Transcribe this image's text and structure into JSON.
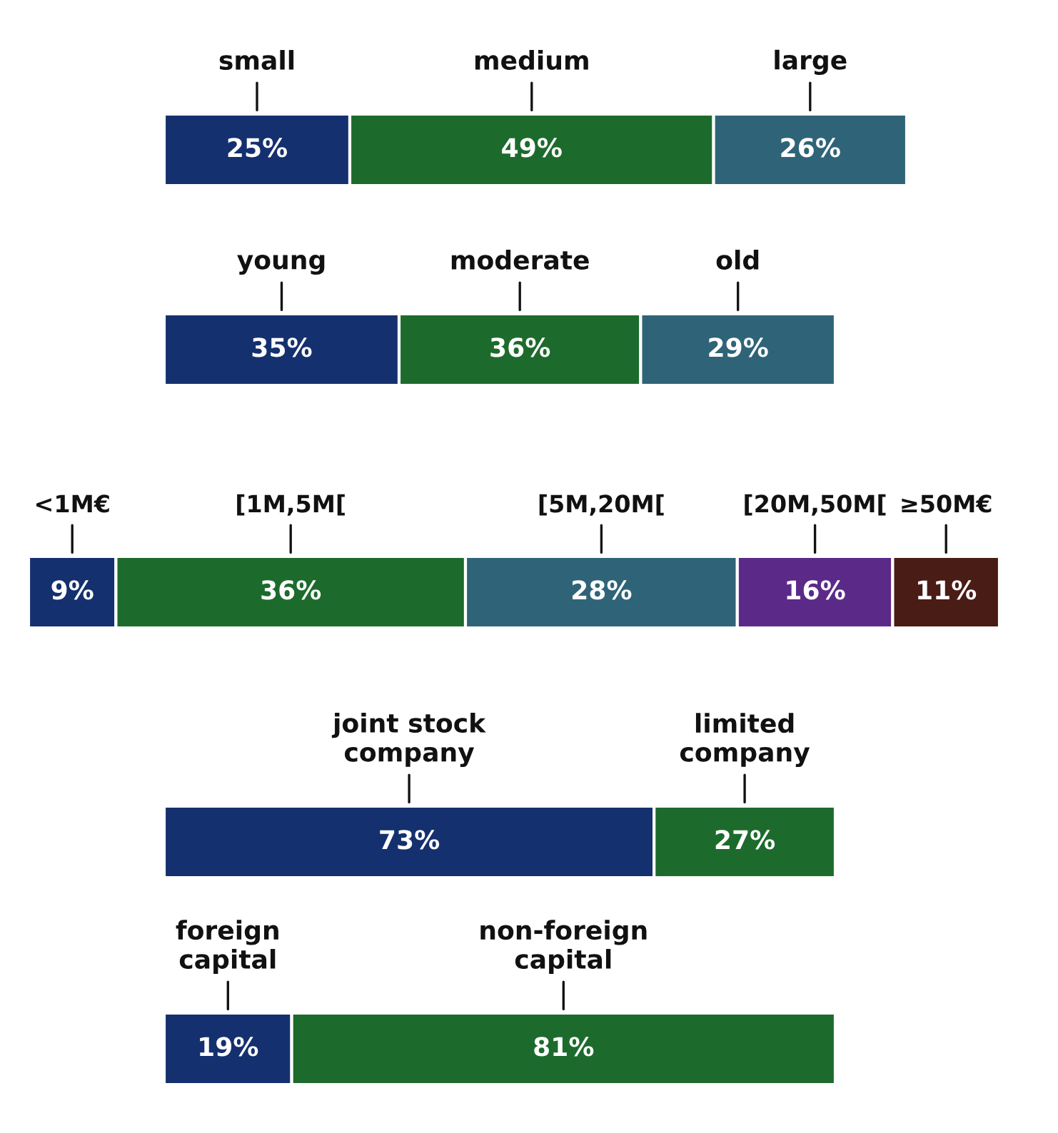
{
  "chart_data": [
    {
      "type": "bar",
      "orientation": "horizontal",
      "stacked": true,
      "categories": [
        null
      ],
      "series": [
        {
          "name": "small",
          "color": "#14306e",
          "values": [
            25
          ],
          "value_labels": [
            "25%"
          ]
        },
        {
          "name": "medium",
          "color": "#1d6b2c",
          "values": [
            49
          ],
          "value_labels": [
            "49%"
          ]
        },
        {
          "name": "large",
          "color": "#2f6478",
          "values": [
            26
          ],
          "value_labels": [
            "26%"
          ]
        }
      ]
    },
    {
      "type": "bar",
      "orientation": "horizontal",
      "stacked": true,
      "categories": [
        null
      ],
      "series": [
        {
          "name": "young",
          "color": "#14306e",
          "values": [
            35
          ],
          "value_labels": [
            "35%"
          ]
        },
        {
          "name": "moderate",
          "color": "#1d6b2c",
          "values": [
            36
          ],
          "value_labels": [
            "36%"
          ]
        },
        {
          "name": "old",
          "color": "#2f6478",
          "values": [
            29
          ],
          "value_labels": [
            "29%"
          ]
        }
      ]
    },
    {
      "type": "bar",
      "orientation": "horizontal",
      "stacked": true,
      "categories": [
        null
      ],
      "series": [
        {
          "name": "<1M€",
          "color": "#14306e",
          "values": [
            9
          ],
          "value_labels": [
            "9%"
          ]
        },
        {
          "name": "[1M,5M[",
          "color": "#1d6b2c",
          "values": [
            36
          ],
          "value_labels": [
            "36%"
          ]
        },
        {
          "name": "[5M,20M[",
          "color": "#2f6478",
          "values": [
            28
          ],
          "value_labels": [
            "28%"
          ]
        },
        {
          "name": "[20M,50M[",
          "color": "#5b2a88",
          "values": [
            16
          ],
          "value_labels": [
            "16%"
          ]
        },
        {
          "name": "≥50M€",
          "color": "#4a1c16",
          "values": [
            11
          ],
          "value_labels": [
            "11%"
          ]
        }
      ]
    },
    {
      "type": "bar",
      "orientation": "horizontal",
      "stacked": true,
      "categories": [
        null
      ],
      "series": [
        {
          "name": "joint stock\ncompany",
          "color": "#14306e",
          "values": [
            73
          ],
          "value_labels": [
            "73%"
          ]
        },
        {
          "name": "limited\ncompany",
          "color": "#1d6b2c",
          "values": [
            27
          ],
          "value_labels": [
            "27%"
          ]
        }
      ]
    },
    {
      "type": "bar",
      "orientation": "horizontal",
      "stacked": true,
      "categories": [
        null
      ],
      "series": [
        {
          "name": "foreign\ncapital",
          "color": "#14306e",
          "values": [
            19
          ],
          "value_labels": [
            "19%"
          ]
        },
        {
          "name": "non-foreign\ncapital",
          "color": "#1d6b2c",
          "values": [
            81
          ],
          "value_labels": [
            "81%"
          ]
        }
      ]
    }
  ]
}
